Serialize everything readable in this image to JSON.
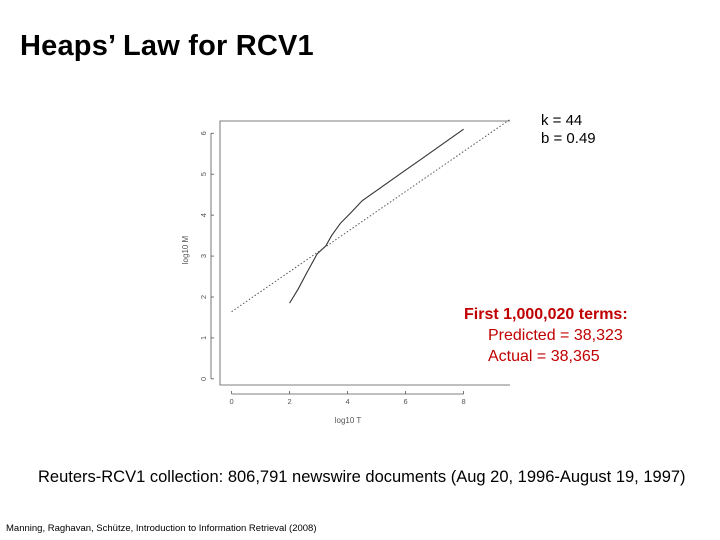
{
  "slide": {
    "title": "Heaps’ Law for RCV1",
    "params": {
      "k": "k = 44",
      "b": "b = 0.49"
    },
    "callout": {
      "heading": "First 1,000,020 terms:",
      "predicted": "Predicted = 38,323",
      "actual": "Actual = 38,365"
    },
    "collection": "Reuters-RCV1 collection: 806,791 newswire documents (Aug 20, 1996-August 19, 1997)",
    "citation": "Manning, Raghavan, Schütze, Introduction to Information Retrieval (2008)"
  },
  "chart_data": {
    "type": "line",
    "xlabel": "log10 T",
    "ylabel": "log10 M",
    "xlim": [
      -0.4,
      9.6
    ],
    "ylim": [
      -0.15,
      6.3
    ],
    "xticks": [
      0,
      2,
      4,
      6,
      8
    ],
    "yticks": [
      0,
      1,
      2,
      3,
      4,
      5,
      6
    ],
    "grid": false,
    "colors": {
      "axis": "#555555",
      "data": "#333333",
      "fit": "#555555",
      "highlight": "#c00000"
    },
    "series": [
      {
        "style": "solid",
        "x": [
          2.0,
          2.3,
          2.6,
          2.95,
          3.25,
          3.45,
          3.75,
          4.1,
          4.5,
          5.0,
          5.5,
          6.0,
          6.5,
          7.0,
          7.5,
          8.0
        ],
        "y": [
          1.85,
          2.2,
          2.6,
          3.05,
          3.25,
          3.5,
          3.8,
          4.05,
          4.35,
          4.6,
          4.85,
          5.1,
          5.35,
          5.6,
          5.85,
          6.1
        ]
      },
      {
        "style": "dotted",
        "x": [
          0,
          9.6
        ],
        "y": [
          1.64,
          6.34
        ]
      }
    ]
  }
}
